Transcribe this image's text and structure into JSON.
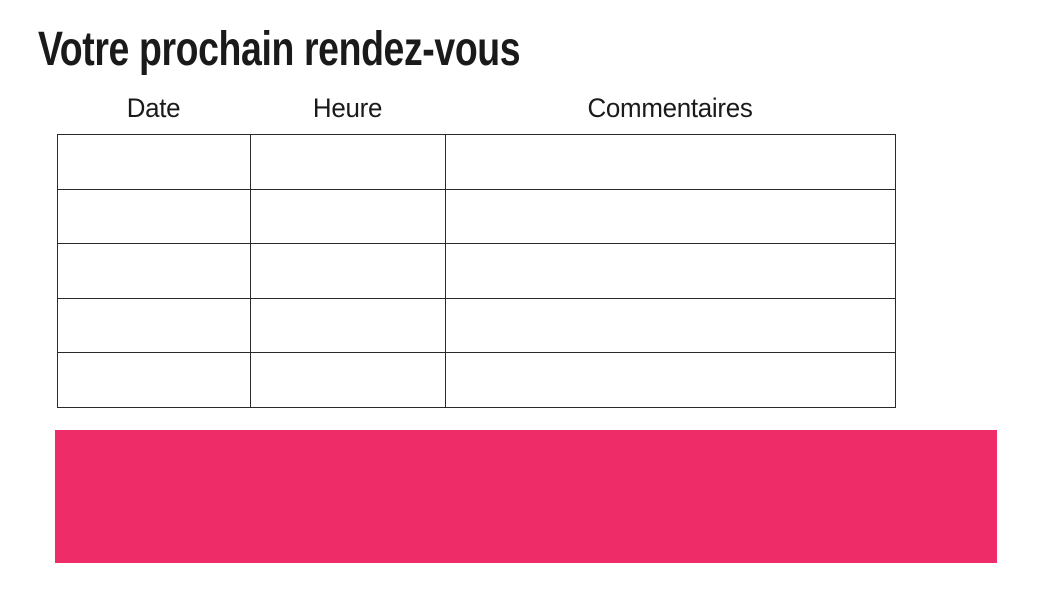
{
  "page": {
    "title": "Votre prochain rendez-vous"
  },
  "table": {
    "columns": [
      {
        "label": "Date"
      },
      {
        "label": "Heure"
      },
      {
        "label": "Commentaires"
      }
    ],
    "rows": [
      [
        "",
        "",
        ""
      ],
      [
        "",
        "",
        ""
      ],
      [
        "",
        "",
        ""
      ],
      [
        "",
        "",
        ""
      ],
      [
        "",
        "",
        ""
      ]
    ]
  },
  "banner": {
    "text": ""
  },
  "colors": {
    "accent_pink": "#ED2C68",
    "border": "#2A2A2A",
    "text": "#1A1A1A"
  }
}
